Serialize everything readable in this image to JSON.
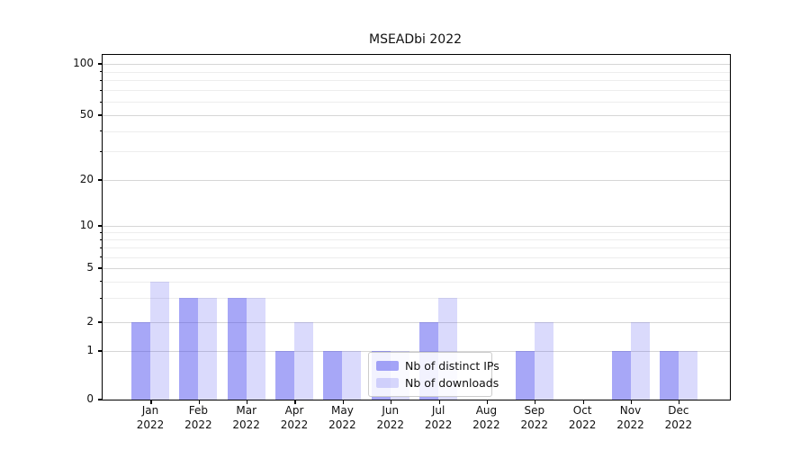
{
  "title": "MSEADbi 2022",
  "colors": {
    "bar_ips": "rgba(68,68,238,0.47)",
    "bar_downloads": "rgba(68,68,238,0.20)",
    "grid_major": "#d6d6d6",
    "grid_minor": "#ededed",
    "axis": "#000000",
    "legend_border": "#cccccc"
  },
  "legend": {
    "items": [
      {
        "label": "Nb of distinct IPs",
        "color_key": "bar_ips"
      },
      {
        "label": "Nb of downloads",
        "color_key": "bar_downloads"
      }
    ]
  },
  "chart_data": {
    "type": "bar",
    "title": "MSEADbi 2022",
    "categories": [
      "Jan 2022",
      "Feb 2022",
      "Mar 2022",
      "Apr 2022",
      "May 2022",
      "Jun 2022",
      "Jul 2022",
      "Aug 2022",
      "Sep 2022",
      "Oct 2022",
      "Nov 2022",
      "Dec 2022"
    ],
    "x_tick_months": [
      "Jan",
      "Feb",
      "Mar",
      "Apr",
      "May",
      "Jun",
      "Jul",
      "Aug",
      "Sep",
      "Oct",
      "Nov",
      "Dec"
    ],
    "x_tick_year": "2022",
    "series": [
      {
        "name": "Nb of distinct IPs",
        "values": [
          2,
          3,
          3,
          1,
          1,
          1,
          2,
          0,
          1,
          0,
          1,
          1
        ]
      },
      {
        "name": "Nb of downloads",
        "values": [
          4,
          3,
          3,
          2,
          1,
          1,
          3,
          0,
          2,
          0,
          2,
          1
        ]
      }
    ],
    "y_scale": "symlog",
    "y_ticks": [
      0,
      1,
      2,
      5,
      10,
      20,
      50,
      100
    ],
    "y_tick_labels": [
      "0",
      "1",
      "2",
      "5",
      "10",
      "20",
      "50",
      "100"
    ],
    "y_minor_ticks": [
      3,
      4,
      6,
      7,
      8,
      9,
      30,
      40,
      60,
      70,
      80,
      90
    ],
    "ylim": [
      0,
      120
    ],
    "xlabel": "",
    "ylabel": "",
    "grid": true,
    "legend_position": "lower center"
  }
}
